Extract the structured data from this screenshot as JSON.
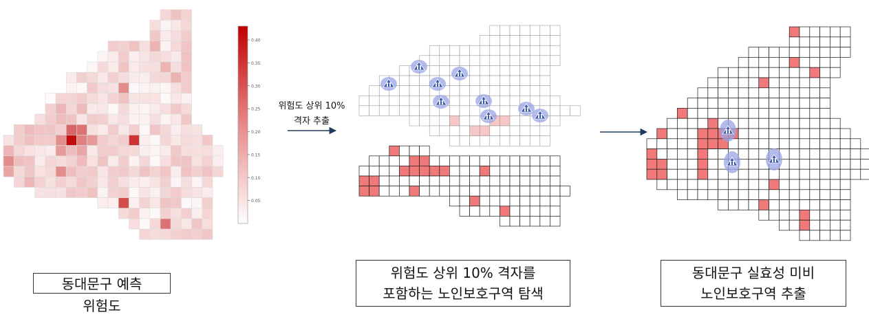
{
  "panel1": {
    "caption_line1": "동대문구 예측",
    "caption_line2": "위험도",
    "colorbar_ticks": [
      "0.40",
      "0.35",
      "0.30",
      "0.25",
      "0.20",
      "0.15",
      "0.10",
      "0.05"
    ],
    "colorbar_range": [
      0,
      0.43
    ]
  },
  "arrow1": {
    "line1": "위험도 상위 10%",
    "line2": "격자 추출"
  },
  "panel2": {
    "caption_line1": "위험도 상위 10% 격자를",
    "caption_line2": "포함하는 노인보호구역 탐색"
  },
  "panel3": {
    "caption_line1": "동대문구 실효성 미비",
    "caption_line2": "노인보호구역 추출"
  },
  "colors": {
    "risk_high": "#c00000",
    "risk_low": "#ffffff",
    "highlight": "#f07a7a",
    "grid_line": "#1a1a1a",
    "light_grid": "#dddddd",
    "marker": "#3a5aa8",
    "marker_halo": "#9aa4e6"
  },
  "icons": {
    "marker": "senior-zone-icon"
  }
}
